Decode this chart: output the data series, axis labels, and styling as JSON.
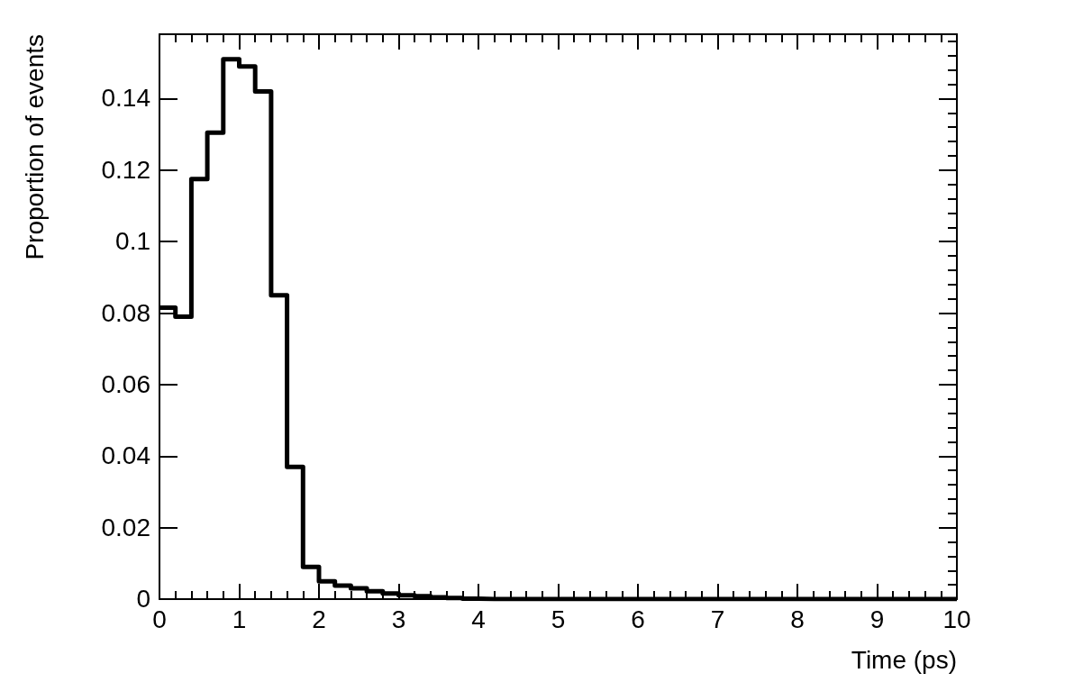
{
  "chart_data": {
    "type": "histogram",
    "xlabel": "Time (ps)",
    "ylabel": "Proportion of events",
    "bins": [
      0,
      0.2,
      0.4,
      0.6,
      0.8,
      1,
      1.2,
      1.4,
      1.6,
      1.8,
      2,
      2.2,
      2.4,
      2.6,
      2.8,
      3,
      3.2,
      3.4,
      3.6,
      3.8,
      4,
      4.2,
      4.4,
      4.6,
      4.8,
      5,
      5.2,
      5.4,
      5.6,
      5.8,
      6,
      6.2,
      6.4,
      6.6,
      6.8,
      7,
      7.2,
      7.4,
      7.6,
      7.8,
      8,
      8.2,
      8.4,
      8.6,
      8.8,
      9,
      9.2,
      9.4,
      9.6,
      9.8,
      10
    ],
    "values": [
      0.0815,
      0.079,
      0.1175,
      0.1305,
      0.151,
      0.149,
      0.142,
      0.085,
      0.037,
      0.009,
      0.005,
      0.0038,
      0.003,
      0.0022,
      0.0016,
      0.0011,
      0.0008,
      0.0005,
      0.0003,
      0.0001,
      0,
      0,
      0,
      0,
      0,
      0,
      0,
      0,
      0,
      0,
      0,
      0,
      0,
      0,
      0,
      0,
      0,
      0,
      0,
      0,
      0,
      0,
      0,
      0,
      0,
      0,
      0,
      0,
      0,
      0
    ],
    "color": "#000000",
    "xlim": [
      0,
      10
    ],
    "xticks": [
      0,
      1,
      2,
      3,
      4,
      5,
      6,
      7,
      8,
      9,
      10
    ],
    "ylim": [
      0,
      0.158
    ],
    "yticks": [
      0,
      0.02,
      0.04,
      0.06,
      0.08,
      0.1,
      0.12,
      0.14
    ],
    "grid": false
  }
}
